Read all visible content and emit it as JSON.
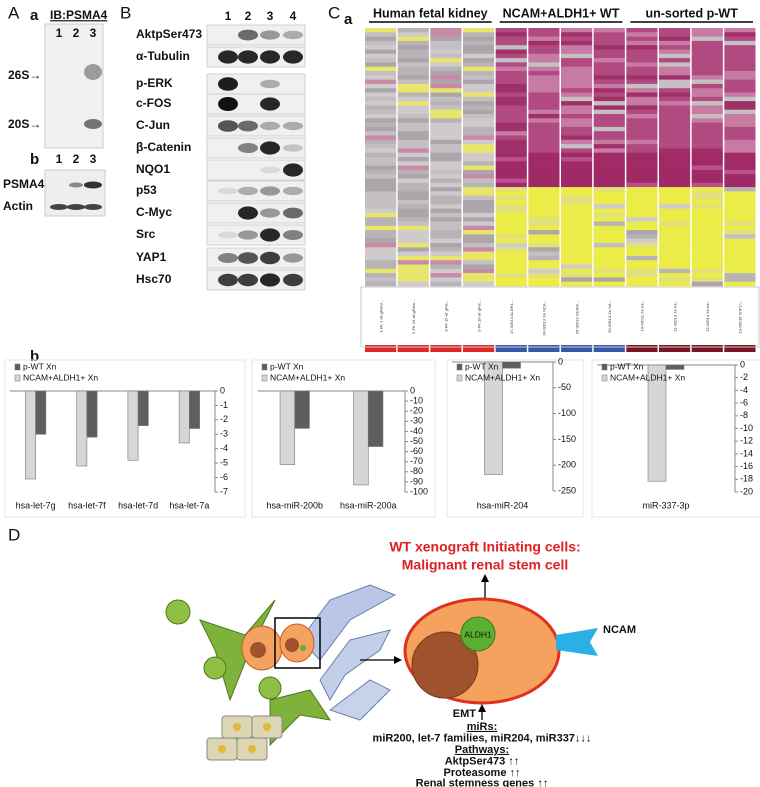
{
  "panel_a": {
    "label": "A",
    "sub_a": "a",
    "ib": "IB:PSMA4",
    "lanes": [
      "1",
      "2",
      "3"
    ],
    "markers": [
      "26S→",
      "20S→"
    ],
    "sub_b": "b",
    "lanes_b": [
      "1",
      "2",
      "3"
    ],
    "rows": [
      "PSMA4",
      "Actin"
    ]
  },
  "panel_b": {
    "label": "B",
    "lanes": [
      "1",
      "2",
      "3",
      "4"
    ],
    "rows": [
      "AktpSer473",
      "α-Tubulin",
      "p-ERK",
      "c-FOS",
      "C-Jun",
      "β-Catenin",
      "NQO1",
      "p53",
      "C-Myc",
      "Src",
      "YAP1",
      "Hsc70"
    ]
  },
  "panel_c": {
    "label": "C",
    "sub_a": "a",
    "groups": [
      "Human fetal kidney",
      "NCAM+ALDH1+ WT",
      "un-sorted p-WT"
    ],
    "samples": [
      "1-FK 1 wt gFetal...",
      "2-FK 15 wt gFeta...",
      "3-FK 15 wt gFet...",
      "5-FK 19 wt gFet...",
      "17-WD14 ALDH1...",
      "24-WD13 Xn NCA...",
      "25-WD13 NCAM ...",
      "26-WD14 Xn NA...",
      "10-WD11 Xn tot...",
      "11-WD13 Xn tot...",
      "12-WD14 Xn tot...",
      "13-WD16 XnP1 t..."
    ],
    "sub_b": "b"
  },
  "chart_data": [
    {
      "type": "bar",
      "categories": [
        "hsa-let-7g",
        "hsa-let-7f",
        "hsa-let-7d",
        "hsa-let-7a"
      ],
      "series": [
        {
          "name": "p-WT Xn",
          "color": "#5e5e5e",
          "values": [
            -3.0,
            -3.2,
            -2.4,
            -2.6
          ]
        },
        {
          "name": "NCAM+ALDH1+ Xn",
          "color": "#d6d6d6",
          "values": [
            -6.1,
            -5.2,
            -4.8,
            -3.6
          ]
        }
      ],
      "ylim": [
        -7,
        0
      ],
      "yticks": [
        0,
        -1,
        -2,
        -3,
        -4,
        -5,
        -6,
        -7
      ]
    },
    {
      "type": "bar",
      "categories": [
        "hsa-miR-200b",
        "hsa-miR-200a"
      ],
      "series": [
        {
          "name": "p-WT Xn",
          "color": "#5e5e5e",
          "values": [
            -37,
            -55
          ]
        },
        {
          "name": "NCAM+ALDH1+ Xn",
          "color": "#d6d6d6",
          "values": [
            -73,
            -93
          ]
        }
      ],
      "ylim": [
        -100,
        0
      ],
      "yticks": [
        0,
        -10,
        -20,
        -30,
        -40,
        -50,
        -60,
        -70,
        -80,
        -90,
        -100
      ]
    },
    {
      "type": "bar",
      "categories": [
        "hsa-miR-204"
      ],
      "series": [
        {
          "name": "p-WT Xn",
          "color": "#5e5e5e",
          "values": [
            -12
          ]
        },
        {
          "name": "NCAM+ALDH1+ Xn",
          "color": "#d6d6d6",
          "values": [
            -218
          ]
        }
      ],
      "ylim": [
        -250,
        0
      ],
      "yticks": [
        0,
        -50,
        -100,
        -150,
        -200,
        -250
      ]
    },
    {
      "type": "bar",
      "categories": [
        "miR-337-3p"
      ],
      "series": [
        {
          "name": "p-WT Xn",
          "color": "#5e5e5e",
          "values": [
            -0.7
          ]
        },
        {
          "name": "NCAM+ALDH1+ Xn",
          "color": "#d6d6d6",
          "values": [
            -18.3
          ]
        }
      ],
      "ylim": [
        -20,
        0
      ],
      "yticks": [
        0,
        -2,
        -4,
        -6,
        -8,
        -10,
        -12,
        -14,
        -16,
        -18,
        -20
      ]
    }
  ],
  "panel_d": {
    "label": "D",
    "title_line1": "WT xenograft Initiating cells:",
    "title_line2": "Malignant renal stem cell",
    "aldh1": "ALDH1",
    "ncam": "NCAM",
    "emt": "EMT",
    "mirs_title": "miRs:",
    "mirs_text": "miR200, let-7 families, miR204, miR337↓↓↓",
    "pathways_title": "Pathways:",
    "pathways": [
      "AktpSer473 ↑↑",
      "Proteasome ↑↑",
      "Renal stemness genes ↑↑"
    ]
  }
}
